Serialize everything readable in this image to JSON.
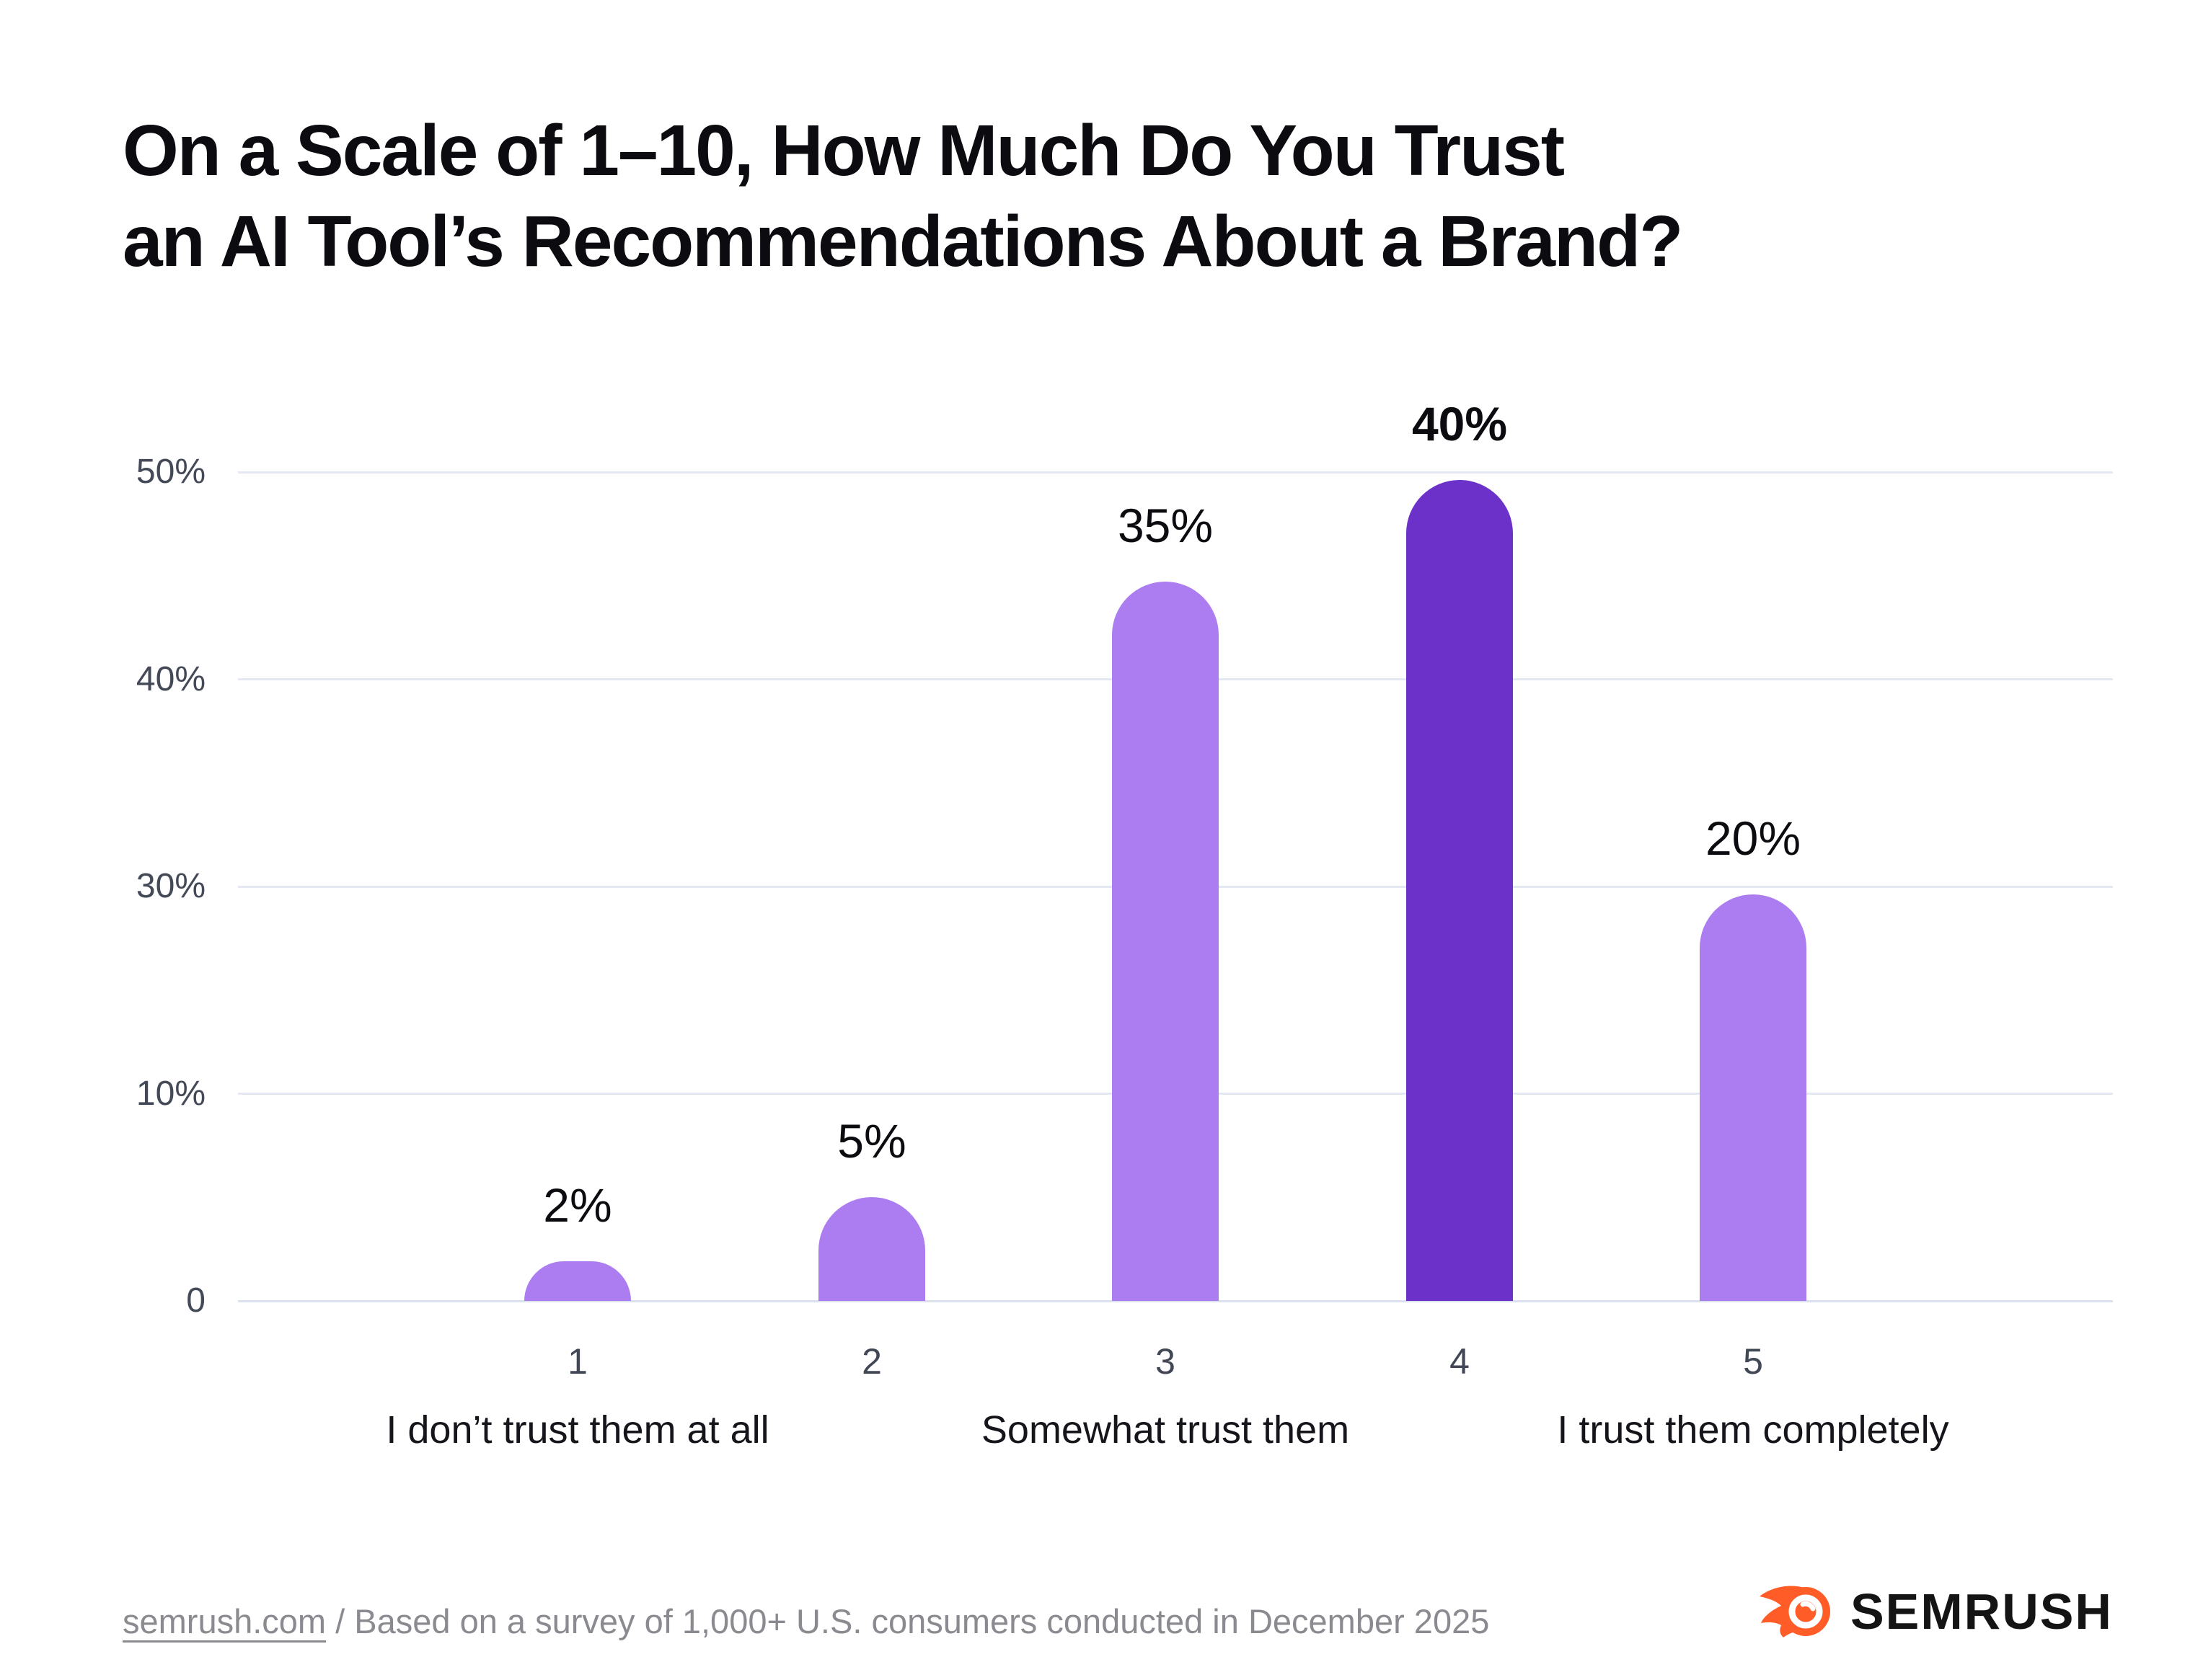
{
  "title": {
    "lines": [
      "On a Scale of 1–10, How Much Do You Trust",
      "an AI Tool’s Recommendations About a Brand?"
    ]
  },
  "chart_data": {
    "type": "bar",
    "title": "On a Scale of 1–10, How Much Do You Trust an AI Tool’s Recommendations About a Brand?",
    "categories": [
      "1",
      "2",
      "3",
      "4",
      "5"
    ],
    "values": [
      2,
      5,
      35,
      40,
      20
    ],
    "value_labels": [
      "2%",
      "5%",
      "35%",
      "40%",
      "20%"
    ],
    "emphasized_index": 3,
    "y_ticks": [
      "50%",
      "40%",
      "30%",
      "10%",
      "0"
    ],
    "ylim": [
      0,
      50
    ],
    "xlabel": "",
    "ylabel": "",
    "grid": true,
    "legend": "none",
    "axis_sublabels": [
      {
        "category_index": 0,
        "text": "I don’t trust them at all"
      },
      {
        "category_index": 2,
        "text": "Somewhat trust them"
      },
      {
        "category_index": 4,
        "text": "I trust them completely"
      }
    ],
    "layout_hints": {
      "bar_height_fractions": [
        0.048,
        0.125,
        0.868,
        0.99,
        0.49
      ],
      "note_axis": "5 evenly spaced gridlines labeled 50/40/30/10/0 (20% label skipped in source graphic)"
    }
  },
  "footer": {
    "source_link": "semrush.com",
    "rest": " / Based on a survey of 1,000+ U.S. consumers conducted in December 2025"
  },
  "logo": {
    "text": "SEMRUSH"
  },
  "colors": {
    "background": "#FFFFFF",
    "title": "#0B0B10",
    "bar_light": "#AC7DF1",
    "bar_dark": "#6B31C9",
    "gridline": "#E3E8F2",
    "baseline": "#DCE2ED",
    "y_label": "#434956",
    "x_tick": "#414754",
    "x_sublabel": "#15151B",
    "value_label": "#0B0B10",
    "footer": "#8A8A90",
    "logo_orange": "#FF5C28",
    "logo_text": "#141414"
  }
}
